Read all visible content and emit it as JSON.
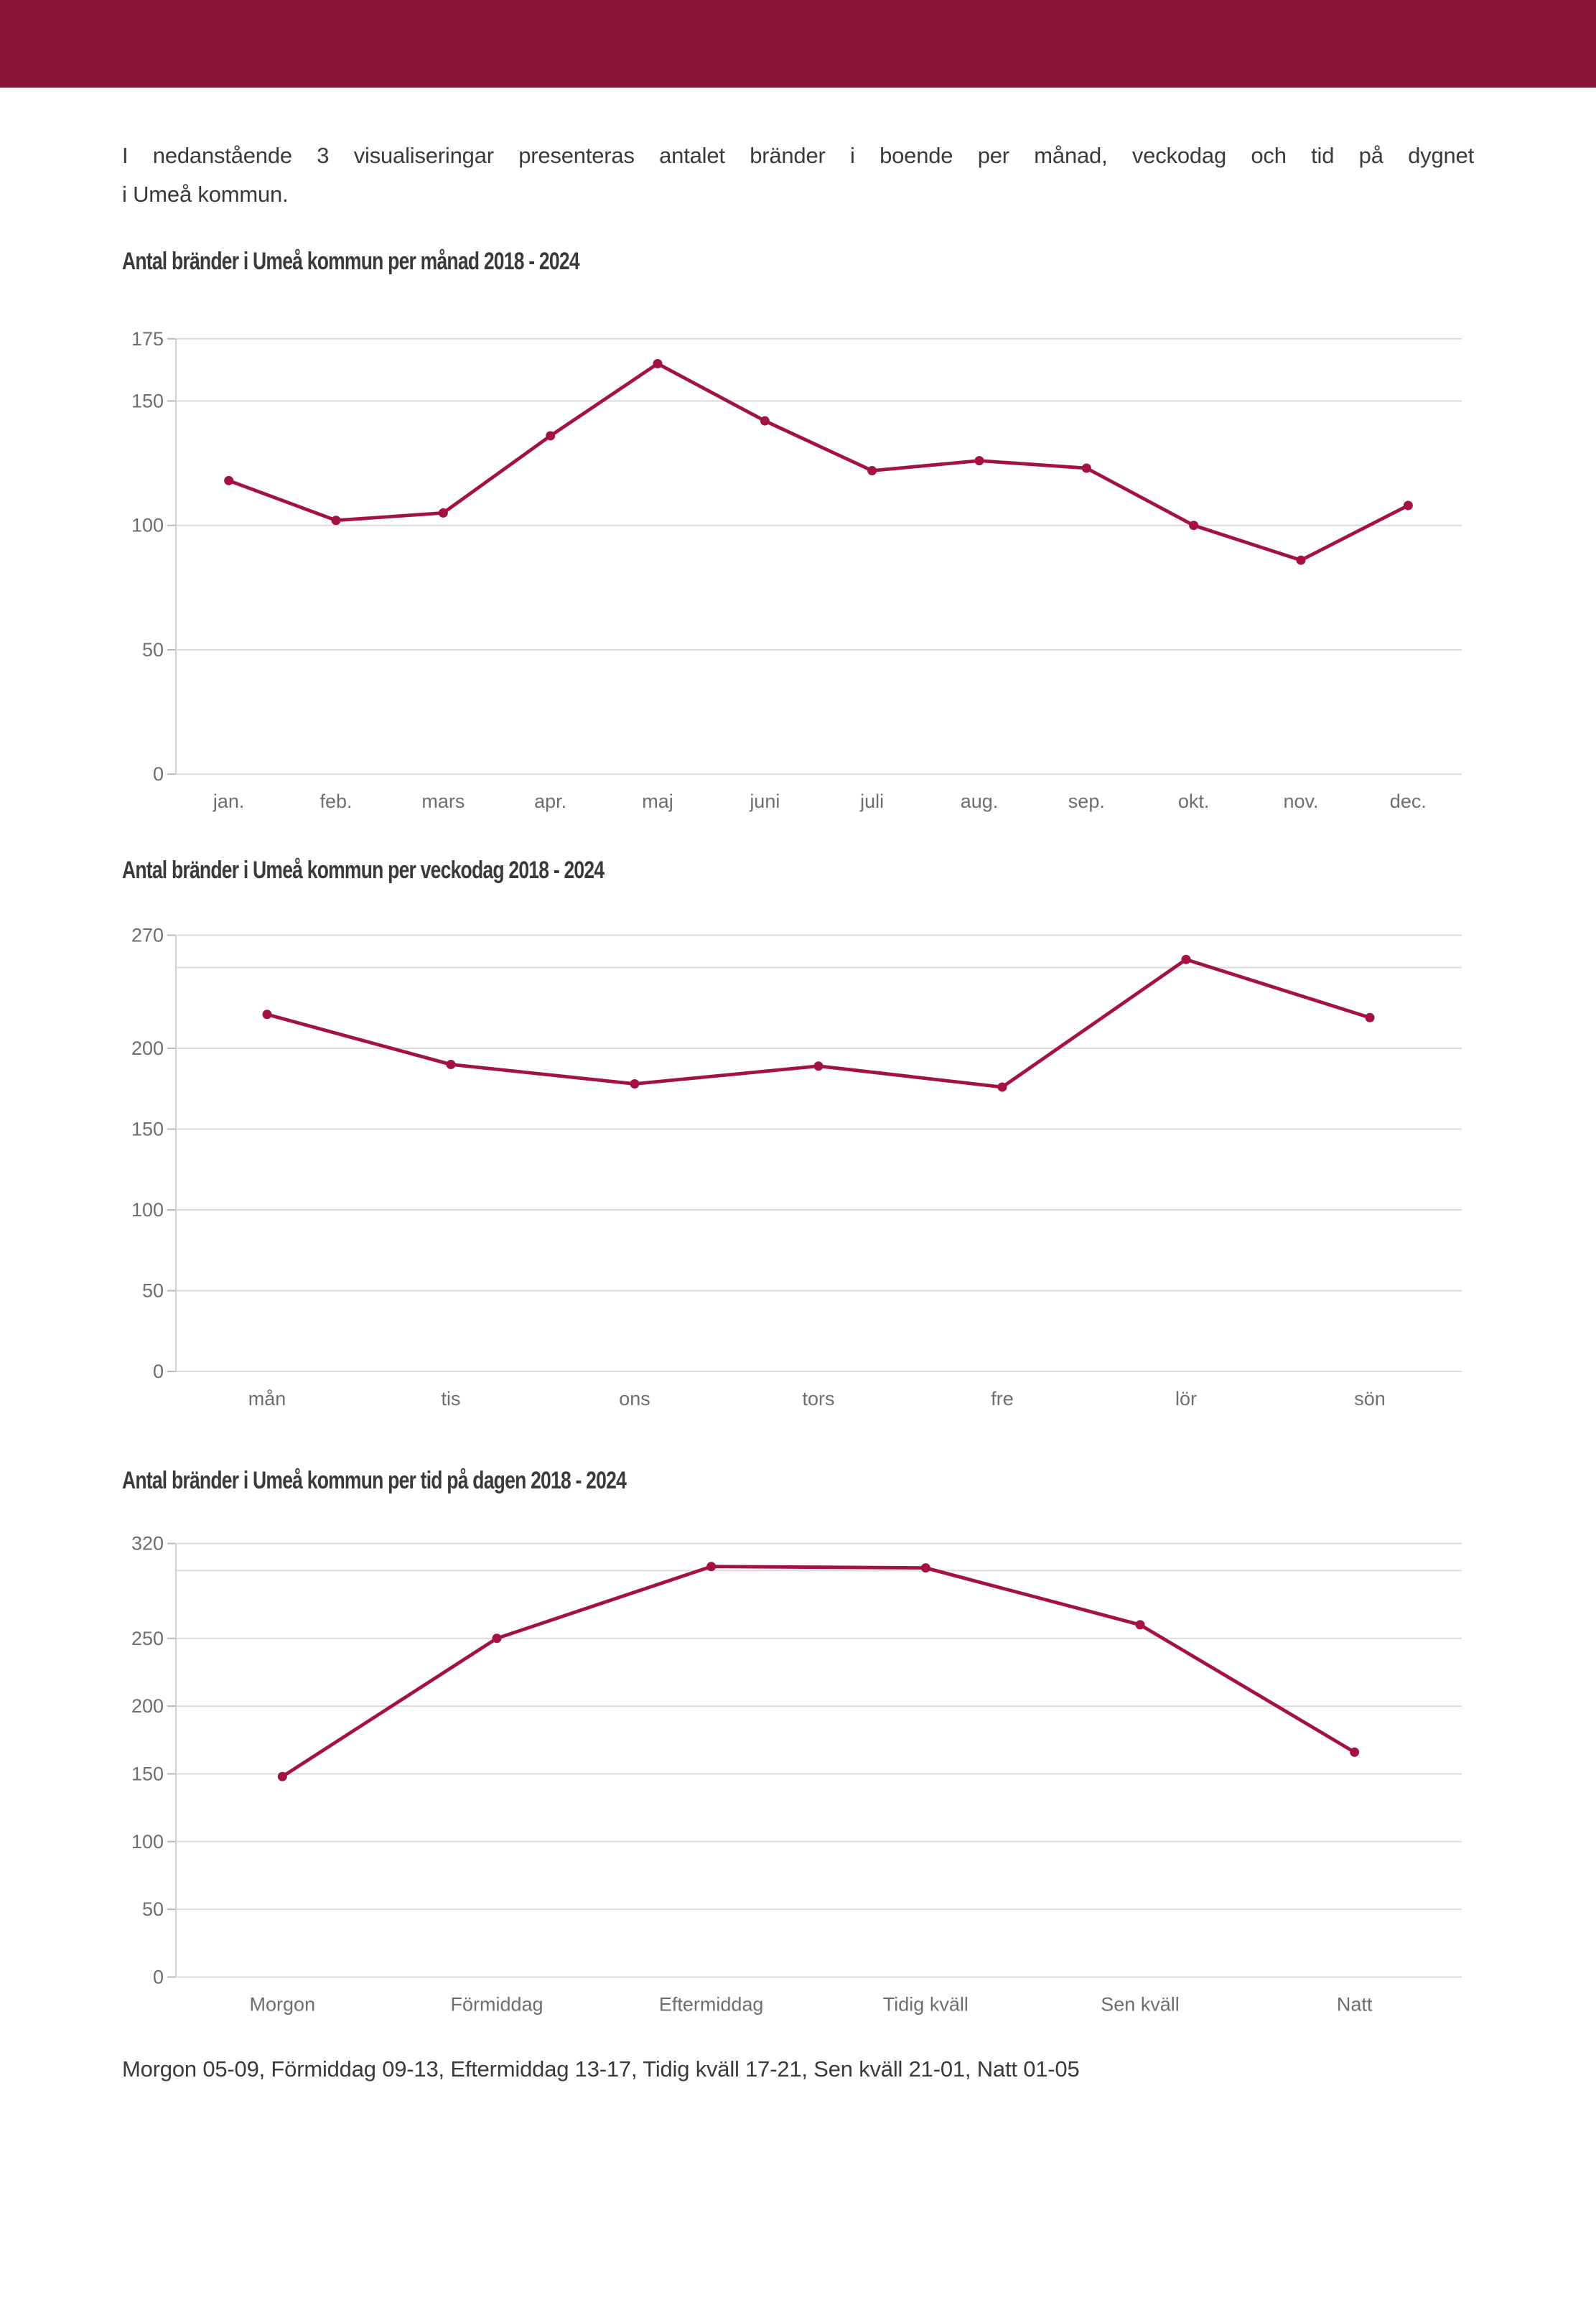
{
  "page": {
    "colors": {
      "header": "#8B1538",
      "series": "#A31146",
      "grid": "#DBDBDB",
      "axis_line": "#CFCFCF",
      "tick": "#B9B9B9",
      "axis_label": "#6E6E6E",
      "text": "#3A3A3A"
    }
  },
  "intro": {
    "line1": "I nedanstående 3 visualiseringar presenteras antalet bränder i boende per månad, veckodag och tid på dygnet",
    "line2": "i Umeå kommun."
  },
  "chart_data": [
    {
      "type": "line",
      "title": "Antal bränder i Umeå kommun per månad 2018 - 2024",
      "categories": [
        "jan.",
        "feb.",
        "mars",
        "apr.",
        "maj",
        "juni",
        "juli",
        "aug.",
        "sep.",
        "okt.",
        "nov.",
        "dec."
      ],
      "values": [
        118,
        102,
        105,
        136,
        165,
        142,
        122,
        126,
        123,
        100,
        86,
        108
      ],
      "xlabel": "",
      "ylabel": "",
      "ylim": [
        0,
        175
      ],
      "yticks": [
        0,
        50,
        100,
        150,
        175
      ],
      "minor_gridlines": [],
      "grid": "horizontal",
      "legend": "none"
    },
    {
      "type": "line",
      "title": "Antal bränder i Umeå kommun per veckodag 2018 - 2024",
      "categories": [
        "mån",
        "tis",
        "ons",
        "tors",
        "fre",
        "lör",
        "sön"
      ],
      "values": [
        221,
        190,
        178,
        189,
        176,
        255,
        219
      ],
      "xlabel": "",
      "ylabel": "",
      "ylim": [
        0,
        270
      ],
      "yticks": [
        0,
        50,
        100,
        150,
        200,
        270
      ],
      "minor_gridlines": [
        250
      ],
      "grid": "horizontal",
      "legend": "none"
    },
    {
      "type": "line",
      "title": "Antal bränder i Umeå kommun per tid på dagen 2018 - 2024",
      "categories": [
        "Morgon",
        "Förmiddag",
        "Eftermiddag",
        "Tidig kväll",
        "Sen kväll",
        "Natt"
      ],
      "values": [
        148,
        250,
        303,
        302,
        260,
        166
      ],
      "xlabel": "",
      "ylabel": "",
      "ylim": [
        0,
        320
      ],
      "yticks": [
        0,
        50,
        100,
        150,
        200,
        250,
        320
      ],
      "minor_gridlines": [
        300
      ],
      "grid": "horizontal",
      "legend": "none"
    }
  ],
  "footer": {
    "text": "Morgon 05-09, Förmiddag 09-13, Eftermiddag 13-17, Tidig kväll 17-21, Sen kväll 21-01, Natt 01-05"
  }
}
